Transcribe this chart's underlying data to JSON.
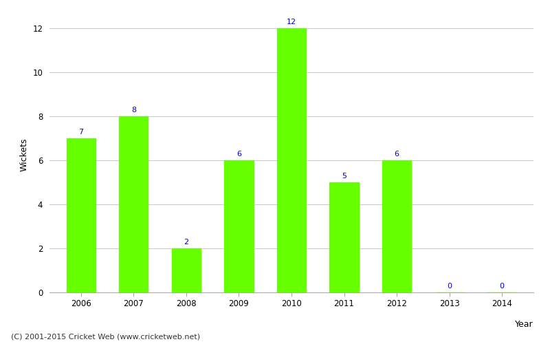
{
  "years": [
    "2006",
    "2007",
    "2008",
    "2009",
    "2010",
    "2011",
    "2012",
    "2013",
    "2014"
  ],
  "wickets": [
    7,
    8,
    2,
    6,
    12,
    5,
    6,
    0,
    0
  ],
  "bar_color": "#66ff00",
  "label_color": "#0000cc",
  "xlabel": "Year",
  "ylabel": "Wickets",
  "ylim_max": 12.5,
  "yticks": [
    0,
    2,
    4,
    6,
    8,
    10,
    12
  ],
  "grid_color": "#cccccc",
  "background_color": "#ffffff",
  "footer": "(C) 2001-2015 Cricket Web (www.cricketweb.net)",
  "bar_width": 0.55,
  "label_fontsize": 8,
  "axis_label_fontsize": 9,
  "tick_fontsize": 8.5,
  "footer_fontsize": 8
}
